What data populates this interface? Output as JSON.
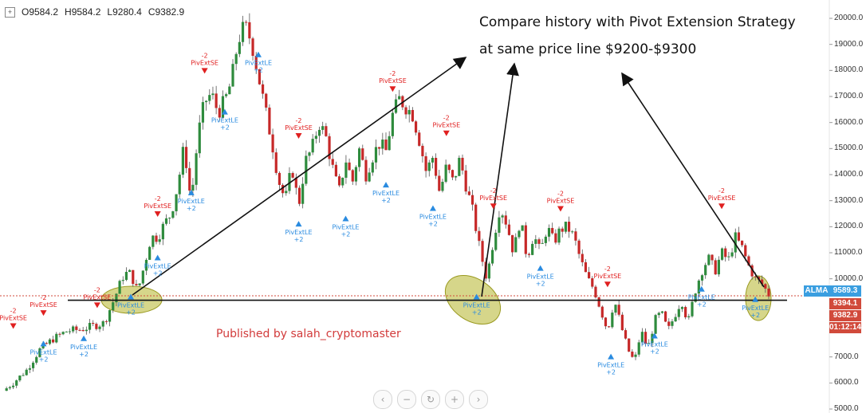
{
  "ohlc": {
    "expand_icon": "plus-square-icon",
    "open": "O9584.2",
    "high": "H9584.2",
    "low": "L9280.4",
    "close": "C9382.9"
  },
  "annotation": {
    "line1": "Compare history with Pivot Extension Strategy",
    "line2": "at same price line $9200-$9300"
  },
  "published": "Published by salah_cryptomaster",
  "price_tags": {
    "alma_label": "ALMA",
    "alma_value": "9589.3",
    "tag1": "9394.1",
    "tag2": "9382.9",
    "timer": "01:12:14"
  },
  "colors": {
    "up": "#2e8b3d",
    "down": "#c62828",
    "label_sell": "#e02020",
    "label_buy": "#2a8be0",
    "ellipse": "#b5b52a",
    "alma": "#3a9ee0"
  },
  "controls": [
    "chevron-left-icon",
    "minus-icon",
    "reset-icon",
    "plus-icon",
    "chevron-right-icon"
  ],
  "chart_data": {
    "type": "candlestick",
    "y_axis_ticks": [
      "20000.0",
      "19000.0",
      "18000.0",
      "17000.0",
      "16000.0",
      "15000.0",
      "14000.0",
      "13000.0",
      "12000.0",
      "11000.0",
      "10000.0",
      "9000.0",
      "8000.0",
      "7000.0",
      "6000.0",
      "5000.0"
    ],
    "ylim": [
      5000,
      20400
    ],
    "price_path": [
      [
        0,
        5700
      ],
      [
        3,
        6000
      ],
      [
        7,
        6500
      ],
      [
        11,
        7300
      ],
      [
        15,
        7700
      ],
      [
        19,
        8000
      ],
      [
        23,
        8050
      ],
      [
        27,
        8200
      ],
      [
        30,
        8300
      ],
      [
        33,
        9200
      ],
      [
        36,
        10200
      ],
      [
        38,
        10200
      ],
      [
        40,
        9500
      ],
      [
        42,
        10500
      ],
      [
        44,
        11600
      ],
      [
        46,
        11600
      ],
      [
        48,
        12100
      ],
      [
        50,
        12500
      ],
      [
        52,
        13600
      ],
      [
        54,
        15200
      ],
      [
        55,
        13800
      ],
      [
        56,
        13000
      ],
      [
        58,
        15500
      ],
      [
        60,
        16800
      ],
      [
        62,
        17100
      ],
      [
        64,
        16400
      ],
      [
        66,
        16800
      ],
      [
        68,
        17600
      ],
      [
        70,
        19200
      ],
      [
        72,
        19700
      ],
      [
        74,
        19100
      ],
      [
        76,
        17800
      ],
      [
        78,
        16500
      ],
      [
        80,
        15300
      ],
      [
        82,
        13800
      ],
      [
        84,
        13000
      ],
      [
        86,
        14300
      ],
      [
        88,
        12800
      ],
      [
        90,
        14500
      ],
      [
        92,
        15000
      ],
      [
        94,
        16000
      ],
      [
        96,
        15500
      ],
      [
        98,
        14300
      ],
      [
        100,
        13300
      ],
      [
        102,
        14600
      ],
      [
        104,
        13700
      ],
      [
        106,
        15000
      ],
      [
        108,
        14000
      ],
      [
        110,
        14700
      ],
      [
        112,
        15200
      ],
      [
        114,
        14900
      ],
      [
        116,
        16300
      ],
      [
        118,
        16900
      ],
      [
        120,
        16600
      ],
      [
        122,
        16300
      ],
      [
        124,
        15300
      ],
      [
        126,
        14100
      ],
      [
        128,
        14700
      ],
      [
        130,
        13300
      ],
      [
        132,
        14300
      ],
      [
        134,
        13700
      ],
      [
        136,
        14600
      ],
      [
        138,
        13500
      ],
      [
        140,
        12500
      ],
      [
        142,
        11100
      ],
      [
        144,
        10000
      ],
      [
        146,
        11500
      ],
      [
        148,
        12800
      ],
      [
        150,
        12100
      ],
      [
        152,
        11000
      ],
      [
        154,
        12300
      ],
      [
        156,
        10800
      ],
      [
        158,
        11700
      ],
      [
        160,
        11000
      ],
      [
        162,
        12000
      ],
      [
        164,
        11400
      ],
      [
        166,
        11900
      ],
      [
        168,
        12000
      ],
      [
        170,
        11600
      ],
      [
        172,
        10700
      ],
      [
        174,
        10000
      ],
      [
        176,
        9600
      ],
      [
        178,
        8800
      ],
      [
        180,
        8000
      ],
      [
        182,
        9200
      ],
      [
        184,
        8200
      ],
      [
        186,
        7300
      ],
      [
        188,
        6800
      ],
      [
        190,
        8000
      ],
      [
        192,
        7300
      ],
      [
        194,
        8400
      ],
      [
        196,
        8700
      ],
      [
        198,
        8000
      ],
      [
        200,
        8600
      ],
      [
        202,
        9200
      ],
      [
        204,
        8300
      ],
      [
        206,
        9500
      ],
      [
        208,
        10300
      ],
      [
        210,
        10800
      ],
      [
        212,
        10300
      ],
      [
        214,
        11000
      ],
      [
        216,
        10700
      ],
      [
        218,
        11600
      ],
      [
        220,
        11200
      ],
      [
        222,
        10500
      ],
      [
        224,
        10000
      ],
      [
        226,
        9800
      ],
      [
        228,
        9400
      ]
    ],
    "ellipses": [
      {
        "cx": 14000,
        "cy": 9300
      },
      {
        "cx": 16000,
        "cy": 9300
      },
      {
        "cx": 18000,
        "cy": 9300
      }
    ],
    "horizontal_line": 9300,
    "signals_sell": [
      {
        "t": 3,
        "y": 8200,
        "text1": "-2",
        "text2": "PivExtSE"
      },
      {
        "t": 12,
        "y": 8700,
        "text1": "-2",
        "text2": "PivExtSE"
      },
      {
        "t": 28,
        "y": 9000,
        "text1": "-2",
        "text2": "PivExtSE"
      },
      {
        "t": 46,
        "y": 12500,
        "text1": "-2",
        "text2": "PivExtSE"
      },
      {
        "t": 60,
        "y": 18000,
        "text1": "-2",
        "text2": "PivExtSE"
      },
      {
        "t": 88,
        "y": 15500,
        "text1": "-2",
        "text2": "PivExtSE"
      },
      {
        "t": 116,
        "y": 17300,
        "text1": "-2",
        "text2": "PivExtSE"
      },
      {
        "t": 132,
        "y": 15600,
        "text1": "-2",
        "text2": "PivExtSE"
      },
      {
        "t": 146,
        "y": 12800,
        "text1": "-2",
        "text2": "PivExtSE"
      },
      {
        "t": 166,
        "y": 12700,
        "text1": "-2",
        "text2": "PivExtSE"
      },
      {
        "t": 180,
        "y": 9800,
        "text1": "-2",
        "text2": "PivExtSE"
      },
      {
        "t": 214,
        "y": 12800,
        "text1": "-2",
        "text2": "PivExtSE"
      }
    ],
    "signals_buy": [
      {
        "t": 12,
        "y": 7500,
        "text1": "PivExtLE",
        "text2": "+2"
      },
      {
        "t": 24,
        "y": 7700,
        "text1": "PivExtLE",
        "text2": "+2"
      },
      {
        "t": 38,
        "y": 9300,
        "text1": "PivExtLE",
        "text2": "+2"
      },
      {
        "t": 46,
        "y": 10800,
        "text1": "PivExtLE",
        "text2": "+2"
      },
      {
        "t": 56,
        "y": 13300,
        "text1": "PivExtLE",
        "text2": "+2"
      },
      {
        "t": 66,
        "y": 16400,
        "text1": "PivExtLE",
        "text2": "+2"
      },
      {
        "t": 76,
        "y": 18600,
        "text1": "PivExtLE",
        "text2": "+2"
      },
      {
        "t": 88,
        "y": 12100,
        "text1": "PivExtLE",
        "text2": "+2"
      },
      {
        "t": 102,
        "y": 12300,
        "text1": "PivExtLE",
        "text2": "+2"
      },
      {
        "t": 114,
        "y": 13600,
        "text1": "PivExtLE",
        "text2": "+2"
      },
      {
        "t": 128,
        "y": 12700,
        "text1": "PivExtLE",
        "text2": "+2"
      },
      {
        "t": 141,
        "y": 9300,
        "text1": "PivExtLE",
        "text2": "+2"
      },
      {
        "t": 160,
        "y": 10400,
        "text1": "PivExtLE",
        "text2": "+2"
      },
      {
        "t": 181,
        "y": 7000,
        "text1": "PivExtLE",
        "text2": "+2"
      },
      {
        "t": 194,
        "y": 7800,
        "text1": "PivExtLE",
        "text2": "+2"
      },
      {
        "t": 208,
        "y": 9600,
        "text1": "PivExtLE",
        "text2": "+2"
      },
      {
        "t": 224,
        "y": 9200,
        "text1": "PivExtLE",
        "text2": "+2"
      }
    ]
  }
}
